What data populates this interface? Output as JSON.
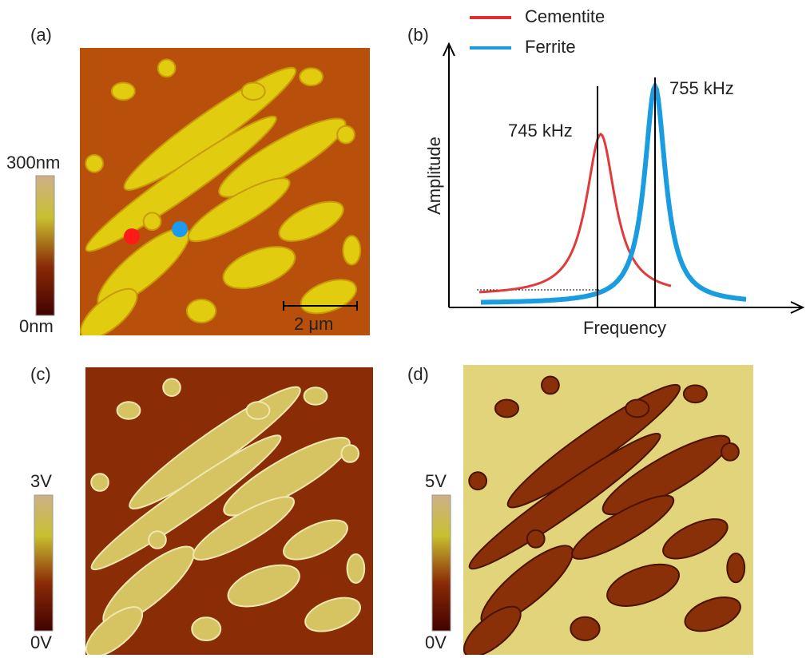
{
  "panels": [
    {
      "label": "(a)",
      "colorbar": {
        "max": "300nm",
        "min": "0nm"
      },
      "scale_bar": "2 μm"
    },
    {
      "label": "(b)",
      "legend": [
        "Cementite",
        "Ferrite"
      ],
      "annotations": [
        "745 kHz",
        "755 kHz"
      ],
      "y_axis_label": "Amplitude",
      "x_axis_label": "Frequency"
    },
    {
      "label": "(c)",
      "colorbar": {
        "max": "3V",
        "min": "0V"
      }
    },
    {
      "label": "(d)",
      "colorbar": {
        "max": "5V",
        "min": "0V"
      }
    }
  ]
}
